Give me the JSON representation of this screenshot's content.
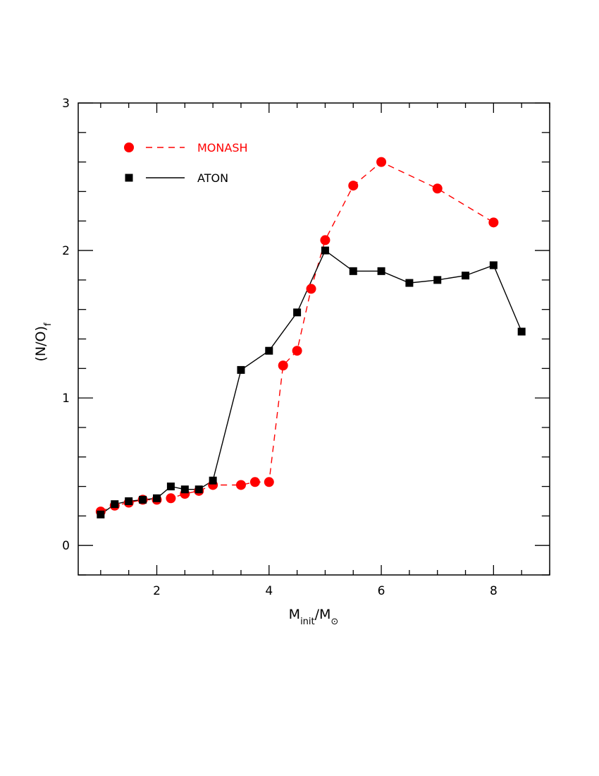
{
  "chart_data": {
    "type": "line",
    "xlabel": {
      "main": "M",
      "sub": "init",
      "sep": "/M",
      "sub2": "⊙"
    },
    "ylabel": {
      "main": "(N/O)",
      "sub": "f"
    },
    "xlim": [
      0.6,
      9.0
    ],
    "ylim": [
      -0.2,
      3.0
    ],
    "x_ticks_major": [
      2,
      4,
      6,
      8
    ],
    "x_ticks_minor_step": 0.5,
    "y_ticks_major": [
      0,
      1,
      2,
      3
    ],
    "y_ticks_minor_step": 0.2,
    "grid": false,
    "legend_position": "top-left",
    "series": [
      {
        "name": "MONASH",
        "color": "#ff0000",
        "marker": "circle",
        "line": "dashed",
        "x": [
          1.0,
          1.25,
          1.5,
          1.75,
          2.0,
          2.25,
          2.5,
          2.75,
          3.0,
          3.5,
          3.75,
          4.0,
          4.25,
          4.5,
          4.75,
          5.0,
          5.5,
          6.0,
          7.0,
          8.0
        ],
        "y": [
          0.23,
          0.27,
          0.29,
          0.31,
          0.31,
          0.32,
          0.35,
          0.37,
          0.41,
          0.41,
          0.43,
          0.43,
          1.22,
          1.32,
          1.74,
          2.07,
          2.44,
          2.6,
          2.42,
          2.19
        ]
      },
      {
        "name": "ATON",
        "color": "#000000",
        "marker": "square",
        "line": "solid",
        "x": [
          1.0,
          1.25,
          1.5,
          1.75,
          2.0,
          2.25,
          2.5,
          2.75,
          3.0,
          3.5,
          4.0,
          4.5,
          5.0,
          5.5,
          6.0,
          6.5,
          7.0,
          7.5,
          8.0,
          8.5
        ],
        "y": [
          0.21,
          0.28,
          0.3,
          0.31,
          0.32,
          0.4,
          0.38,
          0.38,
          0.44,
          1.19,
          1.32,
          1.58,
          2.0,
          1.86,
          1.86,
          1.78,
          1.8,
          1.83,
          1.9,
          1.45
        ]
      }
    ]
  }
}
